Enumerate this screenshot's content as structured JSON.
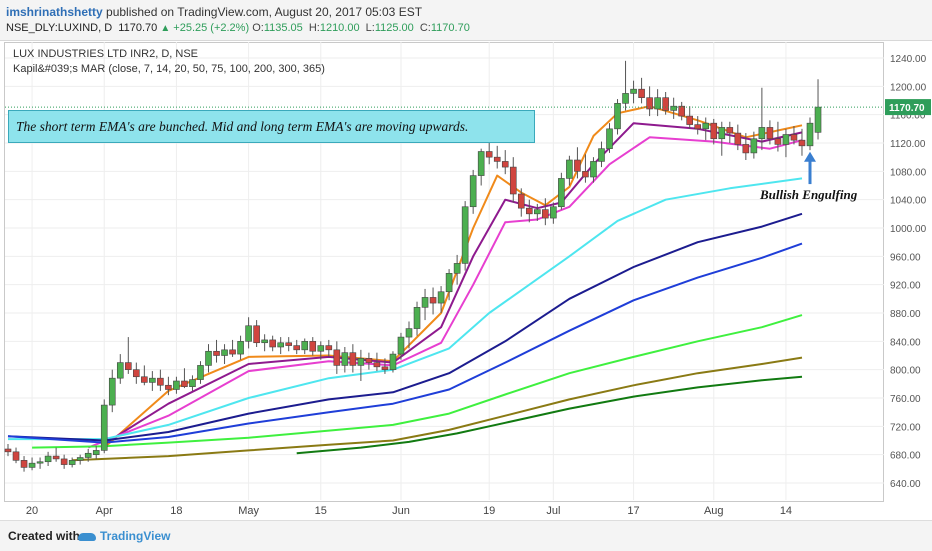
{
  "header": {
    "author": "imshrinathshetty",
    "published_text": "published on TradingView.com, August 20, 2017 05:03 EST",
    "symbol": "NSE_DLY:LUXIND, D",
    "last": "1170.70",
    "change": "+25.25 (+2.2%)",
    "o_label": "O:",
    "o": "1135.05",
    "h_label": "H:",
    "h": "1210.00",
    "l_label": "L:",
    "l": "1125.00",
    "c_label": "C:",
    "c": "1170.70"
  },
  "legend": {
    "line1": "LUX INDUSTRIES LTD INR2, D, NSE",
    "line2": "Kapil&#039;s MAR (close, 7, 14, 20, 50, 75, 100, 200, 300, 365)"
  },
  "annotation": "The short term EMA's are bunched. Mid and long term EMA's are moving upwards.",
  "pattern_label": "Bullish Engulfing",
  "footer": {
    "created": "Created with",
    "brand": "TradingView"
  },
  "colors": {
    "up": "#4caf50",
    "down": "#d0453f",
    "grid": "#eeeeee",
    "price_line": "#2e9d5a",
    "ema7": "#f08a1a",
    "ema14": "#8e1a8e",
    "ema20": "#e73fd0",
    "ema50": "#4ee6ef",
    "ema75": "#1c1c8f",
    "ema100": "#1f3ed8",
    "ema200": "#3ff03f",
    "ema300": "#8a7a14",
    "ema365": "#117a11",
    "arrow": "#3a7fd0"
  },
  "chart_data": {
    "type": "candlestick",
    "ylim": [
      610,
      1260
    ],
    "y_ticks": [
      640,
      680,
      720,
      760,
      800,
      840,
      880,
      920,
      960,
      1000,
      1040,
      1080,
      1120,
      1160,
      1200,
      1240
    ],
    "x_tick_labels": [
      {
        "label": "20",
        "idx": 3
      },
      {
        "label": "Apr",
        "idx": 12
      },
      {
        "label": "18",
        "idx": 21
      },
      {
        "label": "May",
        "idx": 30
      },
      {
        "label": "15",
        "idx": 39
      },
      {
        "label": "Jun",
        "idx": 49
      },
      {
        "label": "19",
        "idx": 60
      },
      {
        "label": "Jul",
        "idx": 68
      },
      {
        "label": "17",
        "idx": 78
      },
      {
        "label": "Aug",
        "idx": 88
      },
      {
        "label": "14",
        "idx": 97
      }
    ],
    "last_price": 1170.7,
    "candles": [
      [
        688,
        695,
        678,
        684
      ],
      [
        684,
        690,
        668,
        672
      ],
      [
        672,
        678,
        656,
        662
      ],
      [
        662,
        676,
        658,
        668
      ],
      [
        668,
        676,
        660,
        670
      ],
      [
        670,
        684,
        664,
        678
      ],
      [
        678,
        690,
        670,
        674
      ],
      [
        674,
        680,
        660,
        666
      ],
      [
        666,
        676,
        662,
        672
      ],
      [
        672,
        680,
        666,
        676
      ],
      [
        676,
        688,
        670,
        682
      ],
      [
        680,
        692,
        674,
        686
      ],
      [
        686,
        758,
        682,
        750
      ],
      [
        750,
        800,
        740,
        788
      ],
      [
        788,
        822,
        780,
        810
      ],
      [
        810,
        846,
        794,
        800
      ],
      [
        800,
        810,
        780,
        790
      ],
      [
        790,
        806,
        778,
        782
      ],
      [
        782,
        798,
        770,
        788
      ],
      [
        788,
        800,
        770,
        778
      ],
      [
        778,
        790,
        764,
        772
      ],
      [
        772,
        790,
        766,
        784
      ],
      [
        784,
        802,
        774,
        776
      ],
      [
        776,
        792,
        770,
        786
      ],
      [
        786,
        812,
        780,
        806
      ],
      [
        806,
        836,
        796,
        826
      ],
      [
        826,
        842,
        810,
        820
      ],
      [
        820,
        836,
        808,
        828
      ],
      [
        828,
        842,
        818,
        822
      ],
      [
        822,
        848,
        814,
        840
      ],
      [
        840,
        874,
        830,
        862
      ],
      [
        862,
        870,
        832,
        838
      ],
      [
        838,
        850,
        826,
        842
      ],
      [
        842,
        848,
        826,
        832
      ],
      [
        832,
        846,
        822,
        838
      ],
      [
        838,
        846,
        826,
        834
      ],
      [
        834,
        842,
        822,
        828
      ],
      [
        828,
        844,
        822,
        840
      ],
      [
        840,
        846,
        820,
        826
      ],
      [
        826,
        840,
        814,
        834
      ],
      [
        834,
        842,
        818,
        828
      ],
      [
        828,
        840,
        794,
        806
      ],
      [
        806,
        832,
        796,
        824
      ],
      [
        824,
        836,
        796,
        806
      ],
      [
        806,
        828,
        784,
        816
      ],
      [
        816,
        824,
        800,
        810
      ],
      [
        810,
        824,
        798,
        804
      ],
      [
        804,
        816,
        794,
        800
      ],
      [
        800,
        826,
        796,
        822
      ],
      [
        822,
        852,
        814,
        846
      ],
      [
        846,
        868,
        830,
        858
      ],
      [
        858,
        896,
        848,
        888
      ],
      [
        888,
        914,
        870,
        902
      ],
      [
        902,
        916,
        878,
        894
      ],
      [
        894,
        918,
        880,
        910
      ],
      [
        910,
        942,
        898,
        936
      ],
      [
        936,
        962,
        920,
        950
      ],
      [
        950,
        1038,
        940,
        1030
      ],
      [
        1030,
        1082,
        1020,
        1074
      ],
      [
        1074,
        1112,
        1060,
        1108
      ],
      [
        1108,
        1122,
        1090,
        1100
      ],
      [
        1100,
        1116,
        1084,
        1094
      ],
      [
        1094,
        1110,
        1076,
        1086
      ],
      [
        1086,
        1100,
        1036,
        1048
      ],
      [
        1048,
        1056,
        1016,
        1028
      ],
      [
        1028,
        1040,
        1008,
        1020
      ],
      [
        1020,
        1034,
        1010,
        1026
      ],
      [
        1026,
        1042,
        1004,
        1014
      ],
      [
        1014,
        1036,
        1006,
        1030
      ],
      [
        1030,
        1078,
        1026,
        1070
      ],
      [
        1070,
        1102,
        1060,
        1096
      ],
      [
        1096,
        1114,
        1070,
        1080
      ],
      [
        1080,
        1104,
        1064,
        1072
      ],
      [
        1072,
        1100,
        1064,
        1094
      ],
      [
        1094,
        1122,
        1086,
        1112
      ],
      [
        1112,
        1148,
        1106,
        1140
      ],
      [
        1140,
        1182,
        1132,
        1176
      ],
      [
        1176,
        1236,
        1166,
        1190
      ],
      [
        1190,
        1208,
        1176,
        1196
      ],
      [
        1196,
        1212,
        1176,
        1184
      ],
      [
        1184,
        1200,
        1158,
        1168
      ],
      [
        1168,
        1196,
        1158,
        1184
      ],
      [
        1184,
        1192,
        1160,
        1166
      ],
      [
        1166,
        1184,
        1154,
        1172
      ],
      [
        1172,
        1178,
        1152,
        1158
      ],
      [
        1158,
        1172,
        1140,
        1146
      ],
      [
        1146,
        1158,
        1132,
        1140
      ],
      [
        1140,
        1156,
        1124,
        1148
      ],
      [
        1148,
        1154,
        1118,
        1126
      ],
      [
        1126,
        1150,
        1102,
        1142
      ],
      [
        1142,
        1150,
        1120,
        1134
      ],
      [
        1134,
        1146,
        1110,
        1118
      ],
      [
        1118,
        1134,
        1096,
        1106
      ],
      [
        1106,
        1136,
        1098,
        1126
      ],
      [
        1126,
        1198,
        1110,
        1142
      ],
      [
        1142,
        1152,
        1118,
        1126
      ],
      [
        1126,
        1150,
        1108,
        1118
      ],
      [
        1118,
        1140,
        1100,
        1132
      ],
      [
        1132,
        1144,
        1118,
        1124
      ],
      [
        1124,
        1140,
        1102,
        1116
      ],
      [
        1116,
        1156,
        1110,
        1148
      ],
      [
        1135.05,
        1210,
        1125,
        1170.7
      ]
    ],
    "series": [
      {
        "name": "EMA 7",
        "color_key": "ema7",
        "start_idx": 12,
        "values": [
          [
            12,
            690
          ],
          [
            20,
            770
          ],
          [
            30,
            818
          ],
          [
            40,
            820
          ],
          [
            48,
            812
          ],
          [
            54,
            880
          ],
          [
            58,
            1000
          ],
          [
            61,
            1074
          ],
          [
            64,
            1050
          ],
          [
            67,
            1032
          ],
          [
            70,
            1058
          ],
          [
            73,
            1130
          ],
          [
            76,
            1162
          ],
          [
            80,
            1172
          ],
          [
            86,
            1152
          ],
          [
            92,
            1128
          ],
          [
            99,
            1145
          ]
        ]
      },
      {
        "name": "EMA 14",
        "color_key": "ema14",
        "start_idx": 12,
        "values": [
          [
            12,
            695
          ],
          [
            20,
            752
          ],
          [
            30,
            808
          ],
          [
            40,
            818
          ],
          [
            48,
            810
          ],
          [
            54,
            860
          ],
          [
            58,
            960
          ],
          [
            62,
            1040
          ],
          [
            66,
            1028
          ],
          [
            69,
            1036
          ],
          [
            73,
            1090
          ],
          [
            78,
            1148
          ],
          [
            86,
            1140
          ],
          [
            94,
            1122
          ],
          [
            99,
            1135
          ]
        ]
      },
      {
        "name": "EMA 20",
        "color_key": "ema20",
        "start_idx": 10,
        "values": [
          [
            10,
            690
          ],
          [
            20,
            735
          ],
          [
            30,
            798
          ],
          [
            40,
            812
          ],
          [
            48,
            806
          ],
          [
            54,
            838
          ],
          [
            58,
            920
          ],
          [
            62,
            1008
          ],
          [
            66,
            1012
          ],
          [
            70,
            1030
          ],
          [
            75,
            1090
          ],
          [
            80,
            1128
          ],
          [
            88,
            1122
          ],
          [
            95,
            1112
          ],
          [
            99,
            1124
          ]
        ]
      },
      {
        "name": "EMA 50",
        "color_key": "ema50",
        "start_idx": 0,
        "values": [
          [
            0,
            702
          ],
          [
            12,
            702
          ],
          [
            20,
            722
          ],
          [
            30,
            760
          ],
          [
            40,
            788
          ],
          [
            48,
            800
          ],
          [
            55,
            830
          ],
          [
            60,
            880
          ],
          [
            65,
            920
          ],
          [
            70,
            960
          ],
          [
            76,
            1010
          ],
          [
            82,
            1040
          ],
          [
            90,
            1056
          ],
          [
            99,
            1070
          ]
        ]
      },
      {
        "name": "EMA 75",
        "color_key": "ema75",
        "start_idx": 0,
        "values": [
          [
            0,
            706
          ],
          [
            12,
            700
          ],
          [
            20,
            712
          ],
          [
            30,
            738
          ],
          [
            40,
            758
          ],
          [
            48,
            768
          ],
          [
            55,
            795
          ],
          [
            62,
            840
          ],
          [
            70,
            900
          ],
          [
            78,
            945
          ],
          [
            86,
            980
          ],
          [
            94,
            1002
          ],
          [
            99,
            1020
          ]
        ]
      },
      {
        "name": "EMA 100",
        "color_key": "ema100",
        "start_idx": 0,
        "values": [
          [
            0,
            706
          ],
          [
            12,
            697
          ],
          [
            20,
            705
          ],
          [
            30,
            724
          ],
          [
            40,
            740
          ],
          [
            48,
            752
          ],
          [
            55,
            772
          ],
          [
            62,
            810
          ],
          [
            70,
            855
          ],
          [
            78,
            898
          ],
          [
            86,
            930
          ],
          [
            94,
            958
          ],
          [
            99,
            978
          ]
        ]
      },
      {
        "name": "EMA 200",
        "color_key": "ema200",
        "start_idx": 3,
        "values": [
          [
            3,
            690
          ],
          [
            12,
            692
          ],
          [
            20,
            697
          ],
          [
            30,
            704
          ],
          [
            40,
            714
          ],
          [
            48,
            722
          ],
          [
            55,
            738
          ],
          [
            62,
            765
          ],
          [
            70,
            795
          ],
          [
            78,
            818
          ],
          [
            86,
            840
          ],
          [
            94,
            860
          ],
          [
            99,
            877
          ]
        ]
      },
      {
        "name": "EMA 300",
        "color_key": "ema300",
        "start_idx": 8,
        "values": [
          [
            8,
            672
          ],
          [
            20,
            678
          ],
          [
            30,
            686
          ],
          [
            40,
            694
          ],
          [
            48,
            700
          ],
          [
            55,
            715
          ],
          [
            62,
            735
          ],
          [
            70,
            758
          ],
          [
            78,
            778
          ],
          [
            86,
            795
          ],
          [
            94,
            808
          ],
          [
            99,
            817
          ]
        ]
      },
      {
        "name": "EMA 365",
        "color_key": "ema365",
        "start_idx": 36,
        "values": [
          [
            36,
            682
          ],
          [
            44,
            690
          ],
          [
            50,
            698
          ],
          [
            56,
            710
          ],
          [
            62,
            725
          ],
          [
            70,
            745
          ],
          [
            78,
            762
          ],
          [
            86,
            775
          ],
          [
            94,
            785
          ],
          [
            99,
            790
          ]
        ]
      }
    ]
  }
}
